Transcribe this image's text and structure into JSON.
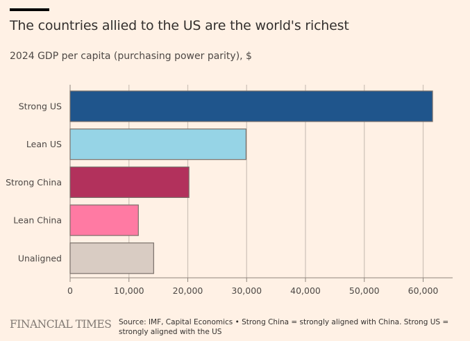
{
  "header": {
    "title": "The countries allied to the US are the world's richest",
    "subtitle": "2024 GDP per capita (purchasing power parity), $"
  },
  "chart_data": {
    "type": "bar",
    "orientation": "horizontal",
    "title": "The countries allied to the US are the world's richest",
    "subtitle": "2024 GDP per capita (purchasing power parity), $",
    "xlabel": "",
    "ylabel": "",
    "categories": [
      "Strong US",
      "Lean US",
      "Strong China",
      "Lean China",
      "Unaligned"
    ],
    "values": [
      61600,
      29900,
      20200,
      11600,
      14200
    ],
    "colors": [
      "#1f558c",
      "#96d4e6",
      "#b2315c",
      "#ff7aa3",
      "#d9ccc3"
    ],
    "xlim": [
      0,
      65000
    ],
    "xticks": [
      0,
      10000,
      20000,
      30000,
      40000,
      50000,
      60000
    ],
    "xtick_labels": [
      "0",
      "10,000",
      "20,000",
      "30,000",
      "40,000",
      "50,000",
      "60,000"
    ],
    "grid": true,
    "legend": "none"
  },
  "footer": {
    "logo": "FINANCIAL TIMES",
    "source": "Source: IMF, Capital Economics • Strong China = strongly aligned with China. Strong US = strongly aligned with the US"
  }
}
